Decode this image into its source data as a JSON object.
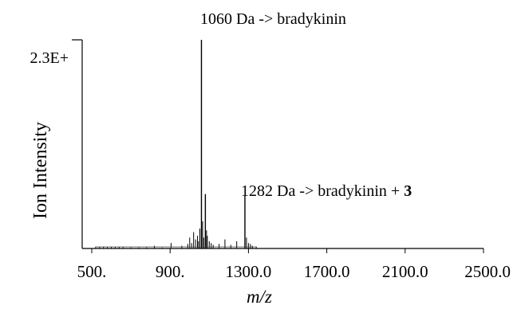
{
  "chart_data": {
    "type": "line",
    "title": "",
    "xlabel": "m/z",
    "ylabel": "Ion Intensity",
    "xlim": [
      500,
      2500
    ],
    "ylim": [
      0,
      2.3
    ],
    "x_ticks": [
      500,
      900,
      1300,
      1700,
      2100,
      2500
    ],
    "x_tick_labels": [
      "500.",
      "900.",
      "1300.0",
      "1700.0",
      "2100.0",
      "2500.0"
    ],
    "y_tick_labels": [
      "2.3E+"
    ],
    "grid": false,
    "legend": "none",
    "annotations": [
      {
        "x": 1060,
        "text": "1060 Da -> bradykinin",
        "bold_suffix": ""
      },
      {
        "x": 1282,
        "text": "1282 Da -> bradykinin + ",
        "bold_suffix": "3"
      }
    ],
    "series": [
      {
        "x": [
          520,
          540,
          560,
          580,
          600,
          620,
          640,
          660,
          700,
          740,
          780,
          820,
          860,
          905,
          960,
          990,
          1000,
          1010,
          1020,
          1030,
          1040,
          1045,
          1052,
          1060,
          1066,
          1072,
          1080,
          1086,
          1090,
          1100,
          1110,
          1120,
          1150,
          1180,
          1210,
          1240,
          1282,
          1290,
          1300,
          1310,
          1320,
          1340
        ],
        "y": [
          0.02,
          0.018,
          0.02,
          0.015,
          0.017,
          0.015,
          0.016,
          0.013,
          0.012,
          0.011,
          0.012,
          0.03,
          0.01,
          0.06,
          0.03,
          0.05,
          0.12,
          0.06,
          0.18,
          0.1,
          0.14,
          0.08,
          0.22,
          2.3,
          0.3,
          0.12,
          0.6,
          0.2,
          0.14,
          0.08,
          0.06,
          0.04,
          0.05,
          0.1,
          0.04,
          0.08,
          0.58,
          0.12,
          0.06,
          0.05,
          0.03,
          0.02
        ]
      }
    ]
  }
}
